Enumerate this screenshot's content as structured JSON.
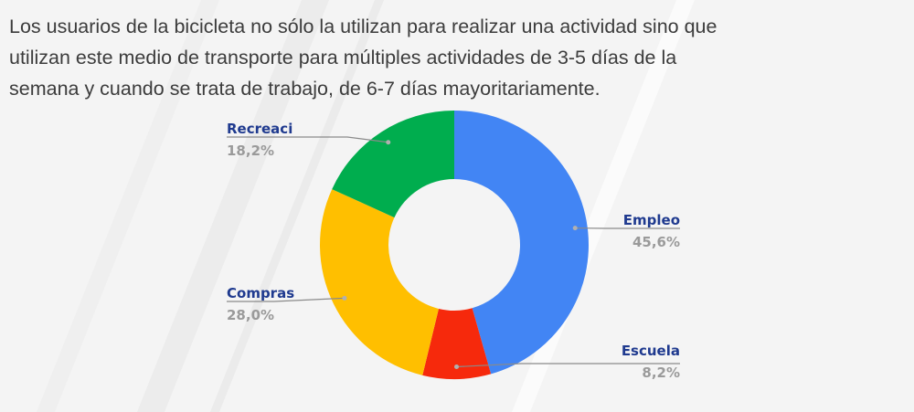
{
  "paragraph": {
    "line1": "Los usuarios de la bicicleta no sólo la utilizan para realizar una actividad sino que",
    "line2": "utilizan este medio de transporte para múltiples actividades de 3-5 días de la",
    "line3": "semana y cuando se trata de trabajo, de 6-7 días mayoritariamente."
  },
  "chart_data": {
    "type": "pie",
    "variant": "donut",
    "title": "",
    "categories": [
      "Empleo",
      "Escuela",
      "Compras",
      "Recreaci"
    ],
    "values": [
      45.6,
      8.2,
      28.0,
      18.2
    ],
    "value_labels": [
      "45,6%",
      "8,2%",
      "28,0%",
      "18,2%"
    ],
    "colors": [
      "#4285f4",
      "#f6290c",
      "#ffbf00",
      "#00ad4e"
    ],
    "start": "top, clockwise",
    "legend": "none; labels placed outside slices with leader lines"
  }
}
